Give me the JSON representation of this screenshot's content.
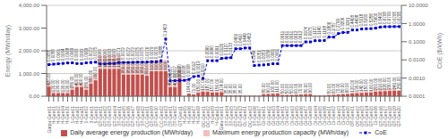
{
  "chart_data": {
    "type": "bar",
    "categories": [
      "Garpu-Gen01",
      "H-Gen01",
      "H-Gen02",
      "H-Gen04",
      "H-Gen31",
      "1-Gen01",
      "H-Goa01",
      "H-Goa31",
      "1-Gen02",
      "3-Gen01",
      "5-Gen01",
      "GT-Gen01",
      "GT-Gen02",
      "GT-Gen03",
      "GT-Gen04",
      "ST-Gen01",
      "GT-Gen05",
      "GT-Gen06",
      "GT-Gen07",
      "GT-Gen08",
      "ST-Gen02",
      "CC-Gen01",
      "GT-Gen09",
      "GT-Gen10",
      "CC-Gen02",
      "ST-Gen03",
      "DT-Gen01",
      "DT-Gen02",
      "GT-Gen11",
      "H-Gen05",
      "H-Gen06",
      "H-Gen07",
      "H-Gen08",
      "OC-Gen01",
      "OC-Gen02",
      "H-Gen09",
      "H-Gatu01",
      "Gatu-Gen01",
      "ST-Gen04",
      "ST-Gen05",
      "GT-Gen12",
      "GT-Gen13",
      "OL-Gen01",
      "OC-Gen03",
      "ST-Gen06",
      "ST-Gen07",
      "GI-Gen01",
      "GI-Gen02",
      "GI-Gen03",
      "GI-Gen04",
      "DI-Gen01",
      "DI-Gen02",
      "DI-Gen03",
      "GI-Gen05",
      "GI-Gen06",
      "GI-Gen07",
      "GI-Gen08",
      "DI-Gen04",
      "DI-Gen05",
      "DI-Gen06",
      "Ci-Gen01",
      "Ci-Gen02",
      "Ci-Gen03",
      "Ci-Gen04",
      "Ci-Gen05",
      "OT-Gen01",
      "OT-Gen02",
      "OT-Gen03",
      "GT-Gen14",
      "GT-Gen15",
      "Ci-Gen06",
      "GT-Gen16",
      "GT-Gen17",
      "GT-Gen18",
      "GT-Gen19",
      "GT-Gen20"
    ],
    "series": [
      {
        "name": "Daily average energy production (MWh/day)",
        "type": "bar",
        "color": "#c0504d",
        "values": [
          420,
          130,
          130,
          130,
          130,
          280,
          400,
          400,
          280,
          550,
          700,
          1200,
          1200,
          1200,
          1200,
          1200,
          950,
          950,
          950,
          950,
          950,
          900,
          1100,
          1100,
          1100,
          1100,
          400,
          400,
          800,
          5.77,
          104,
          71,
          150,
          197,
          187,
          157,
          156,
          174,
          35,
          35,
          35,
          35,
          20,
          20,
          20,
          20,
          80,
          90,
          100,
          110,
          50,
          50,
          50,
          60,
          70,
          80,
          90,
          30,
          30,
          30,
          50,
          60,
          70,
          80,
          90,
          120,
          130,
          140,
          150,
          160,
          200,
          210,
          220,
          230,
          240,
          250
        ],
        "data_labels": true,
        "value_labels": [
          "420.00",
          "130.00",
          "130.00",
          "130.00",
          "130.00",
          "280.00",
          "400.00",
          "400.00",
          "280.00",
          "550.00",
          "700.00",
          "1200",
          "1200",
          "1200",
          "1200",
          "1200",
          "950.00",
          "950.00",
          "950.00",
          "950.00",
          "950.00",
          "900.00",
          "1100",
          "1100",
          "1100",
          "1100",
          "400.00",
          "400.00",
          "800.00",
          null,
          "104.00",
          "71.00",
          "150.00",
          "197.00",
          "187.00",
          "157.00",
          "156.00",
          "174.00",
          "35.00",
          "35.00",
          "35.00",
          "35.00",
          null,
          null,
          null,
          null,
          "80.00",
          "90.00",
          "100.00",
          "110.00",
          "50.00",
          "50.00",
          "50.00",
          "60.00",
          "70.00",
          "80.00",
          "90.00",
          null,
          null,
          null,
          "50.00",
          "60.00",
          "70.00",
          "80.00",
          "90.00",
          "120.00",
          "130.00",
          "140.00",
          "150.00",
          "160.00",
          "200.00",
          "210.00",
          "220.00",
          "230.00",
          "240.00",
          "250.00"
        ]
      },
      {
        "name": "Maximum energy production capacity (MWh/day)",
        "type": "bar",
        "color": "#f2c0bf",
        "values": [
          600,
          200,
          200,
          200,
          200,
          400,
          600,
          600,
          400,
          800,
          1000,
          1800,
          1800,
          1800,
          1800,
          1800,
          1400,
          1400,
          1400,
          1400,
          1400,
          1400,
          1600,
          1600,
          1600,
          1600,
          600,
          600,
          1200,
          10,
          150,
          100,
          220,
          280,
          270,
          225,
          224,
          250,
          50,
          50,
          50,
          50,
          30,
          30,
          30,
          30,
          120,
          135,
          150,
          165,
          75,
          75,
          75,
          90,
          105,
          120,
          135,
          45,
          45,
          45,
          75,
          90,
          105,
          120,
          135,
          180,
          195,
          210,
          225,
          240,
          300,
          315,
          330,
          345,
          360,
          75
        ]
      },
      {
        "name": "CoE",
        "type": "line",
        "axis": "y2",
        "color": "#0000cd",
        "marker": "square",
        "line_style": "dashed",
        "values": [
          0.0055,
          0.0058,
          0.0061,
          0.0064,
          0.0068,
          0.0069,
          0.0063,
          0.0063,
          0.0069,
          0.0072,
          0.0075,
          0.006,
          0.006,
          0.0063,
          0.0063,
          0.0071,
          0.0072,
          0.0072,
          0.0073,
          0.0075,
          0.0075,
          0.0076,
          0.0079,
          0.0079,
          0.0088,
          0.1403,
          0.0007,
          0.00072,
          0.00073,
          0.00075,
          0.00085,
          0.0012,
          0.0013,
          0.00096,
          0.00904,
          0.00904,
          0.00905,
          0.01205,
          0.0127,
          0.01327,
          0.04086,
          0.04098,
          0.04485,
          0.04523,
          0.00488,
          0.00513,
          0.0053,
          0.00561,
          0.00613,
          0.00614,
          0.06112,
          0.06113,
          0.06114,
          0.06115,
          0.06116,
          0.09744,
          0.09748,
          0.1137,
          0.114,
          0.1168,
          0.1806,
          0.17868,
          0.2799,
          0.3206,
          0.3261,
          0.44083,
          0.44383,
          0.50175,
          0.52,
          0.5258,
          0.56,
          0.64,
          0.6708,
          0.6709,
          0.6795,
          0.6795
        ],
        "data_labels": true,
        "value_labels": [
          "0.0055",
          "0.0058",
          "0.0061",
          "0.0064",
          "0.0068",
          "0.0069",
          "0.0063",
          "0.0063",
          "0.0069",
          "0.0072",
          "0.0075",
          "0.0060",
          "0.0060",
          "0.0063",
          "0.0063",
          "0.0071",
          "0.0072",
          "0.0072",
          "0.0073",
          "0.0075",
          "0.0075",
          "0.0076",
          "0.0079",
          "0.0079",
          "0.0088",
          "0.1403",
          "0.0007",
          "0.0007",
          "0.0007",
          "0.0008",
          "0.0008",
          "0.0012",
          "0.0013",
          "0.0010",
          "0.0090",
          "0.0090",
          "0.0091",
          "0.0120",
          "0.0127",
          "0.0133",
          "0.0409",
          "0.0410",
          "0.0449",
          "0.0452",
          "0.0049",
          "0.0051",
          "0.0053",
          "0.0056",
          "0.0061",
          "0.0061",
          "0.0611",
          "0.0611",
          "0.0611",
          "0.0612",
          "0.0612",
          "0.0974",
          "0.0975",
          "0.1137",
          "0.1140",
          "0.1168",
          "0.1806",
          "0.1787",
          "0.2799",
          "0.3206",
          "0.3261",
          "0.4408",
          "0.4438",
          "0.5018",
          "0.5200",
          "0.5258",
          "0.5600",
          "0.6400",
          "0.6708",
          "0.6709",
          "0.6795",
          "0.6795"
        ]
      }
    ],
    "ylabel": "Energy (MWh/day)",
    "y2label": "CoE ($/kWh)",
    "ylim": [
      0,
      4000
    ],
    "yticks": [
      {
        "value": 0,
        "label": "0.00"
      },
      {
        "value": 1000,
        "label": "1,000.00"
      },
      {
        "value": 2000,
        "label": "2,000.00"
      },
      {
        "value": 3000,
        "label": "3,000.00"
      },
      {
        "value": 4000,
        "label": "4,000.00"
      }
    ],
    "y2lim": [
      0.0001,
      10
    ],
    "y2ticks": [
      0.0001,
      {
        "value": 0.001,
        "label": "0.0010"
      },
      {
        "value": 0.01,
        "label": "0.0100"
      },
      {
        "value": 0.1,
        "label": "0.1000"
      },
      {
        "value": 1,
        "label": "1.0000"
      },
      {
        "value": 10,
        "label": "10.0000"
      }
    ],
    "log": "y2",
    "grid": true,
    "legend": "bottom"
  }
}
